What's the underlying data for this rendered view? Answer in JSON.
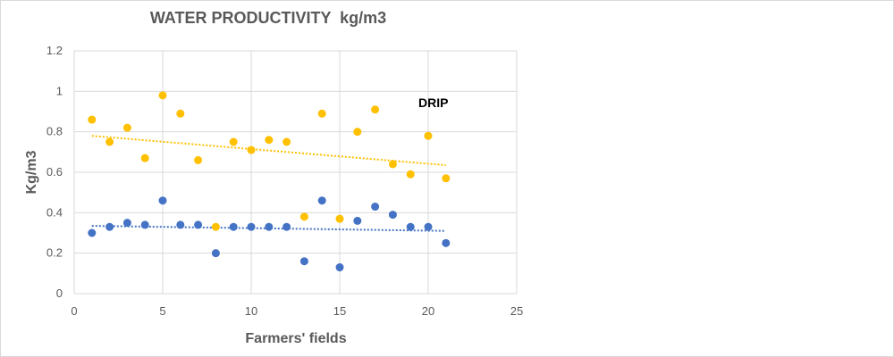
{
  "chart_data": {
    "type": "scatter",
    "title": "WATER PRODUCTIVITY  kg/m3",
    "xlabel": "Farmers' fields",
    "ylabel": "Kg/m3",
    "xlim": [
      0,
      25
    ],
    "ylim": [
      0,
      1.2
    ],
    "xticks": [
      "0",
      "5",
      "10",
      "15",
      "20",
      "25"
    ],
    "yticks": [
      "0",
      "0.2",
      "0.4",
      "0.6",
      "0.8",
      "1",
      "1.2"
    ],
    "grid": true,
    "annotations": [
      {
        "text": "DRIP",
        "x": 20.2,
        "y": 0.93
      }
    ],
    "series": [
      {
        "color": "#ffc000",
        "x": [
          1,
          2,
          3,
          4,
          5,
          6,
          7,
          8,
          9,
          10,
          11,
          12,
          13,
          14,
          15,
          16,
          17,
          18,
          19,
          20,
          21
        ],
        "y": [
          0.86,
          0.75,
          0.82,
          0.67,
          0.98,
          0.89,
          0.66,
          0.33,
          0.75,
          0.71,
          0.76,
          0.75,
          0.38,
          0.89,
          0.37,
          0.8,
          0.91,
          0.64,
          0.59,
          0.78,
          0.57
        ],
        "trendline": {
          "type": "linear",
          "color": "#ffc000",
          "x": [
            1,
            21
          ],
          "y": [
            0.78,
            0.635
          ]
        }
      },
      {
        "color": "#4472c4",
        "x": [
          1,
          2,
          3,
          4,
          5,
          6,
          7,
          8,
          9,
          10,
          11,
          12,
          13,
          14,
          15,
          16,
          17,
          18,
          19,
          20,
          21
        ],
        "y": [
          0.3,
          0.33,
          0.35,
          0.34,
          0.46,
          0.34,
          0.34,
          0.2,
          0.33,
          0.33,
          0.33,
          0.33,
          0.16,
          0.46,
          0.13,
          0.36,
          0.43,
          0.39,
          0.33,
          0.33,
          0.25
        ],
        "trendline": {
          "type": "linear",
          "color": "#4472c4",
          "x": [
            1,
            21
          ],
          "y": [
            0.335,
            0.31
          ]
        }
      }
    ]
  }
}
